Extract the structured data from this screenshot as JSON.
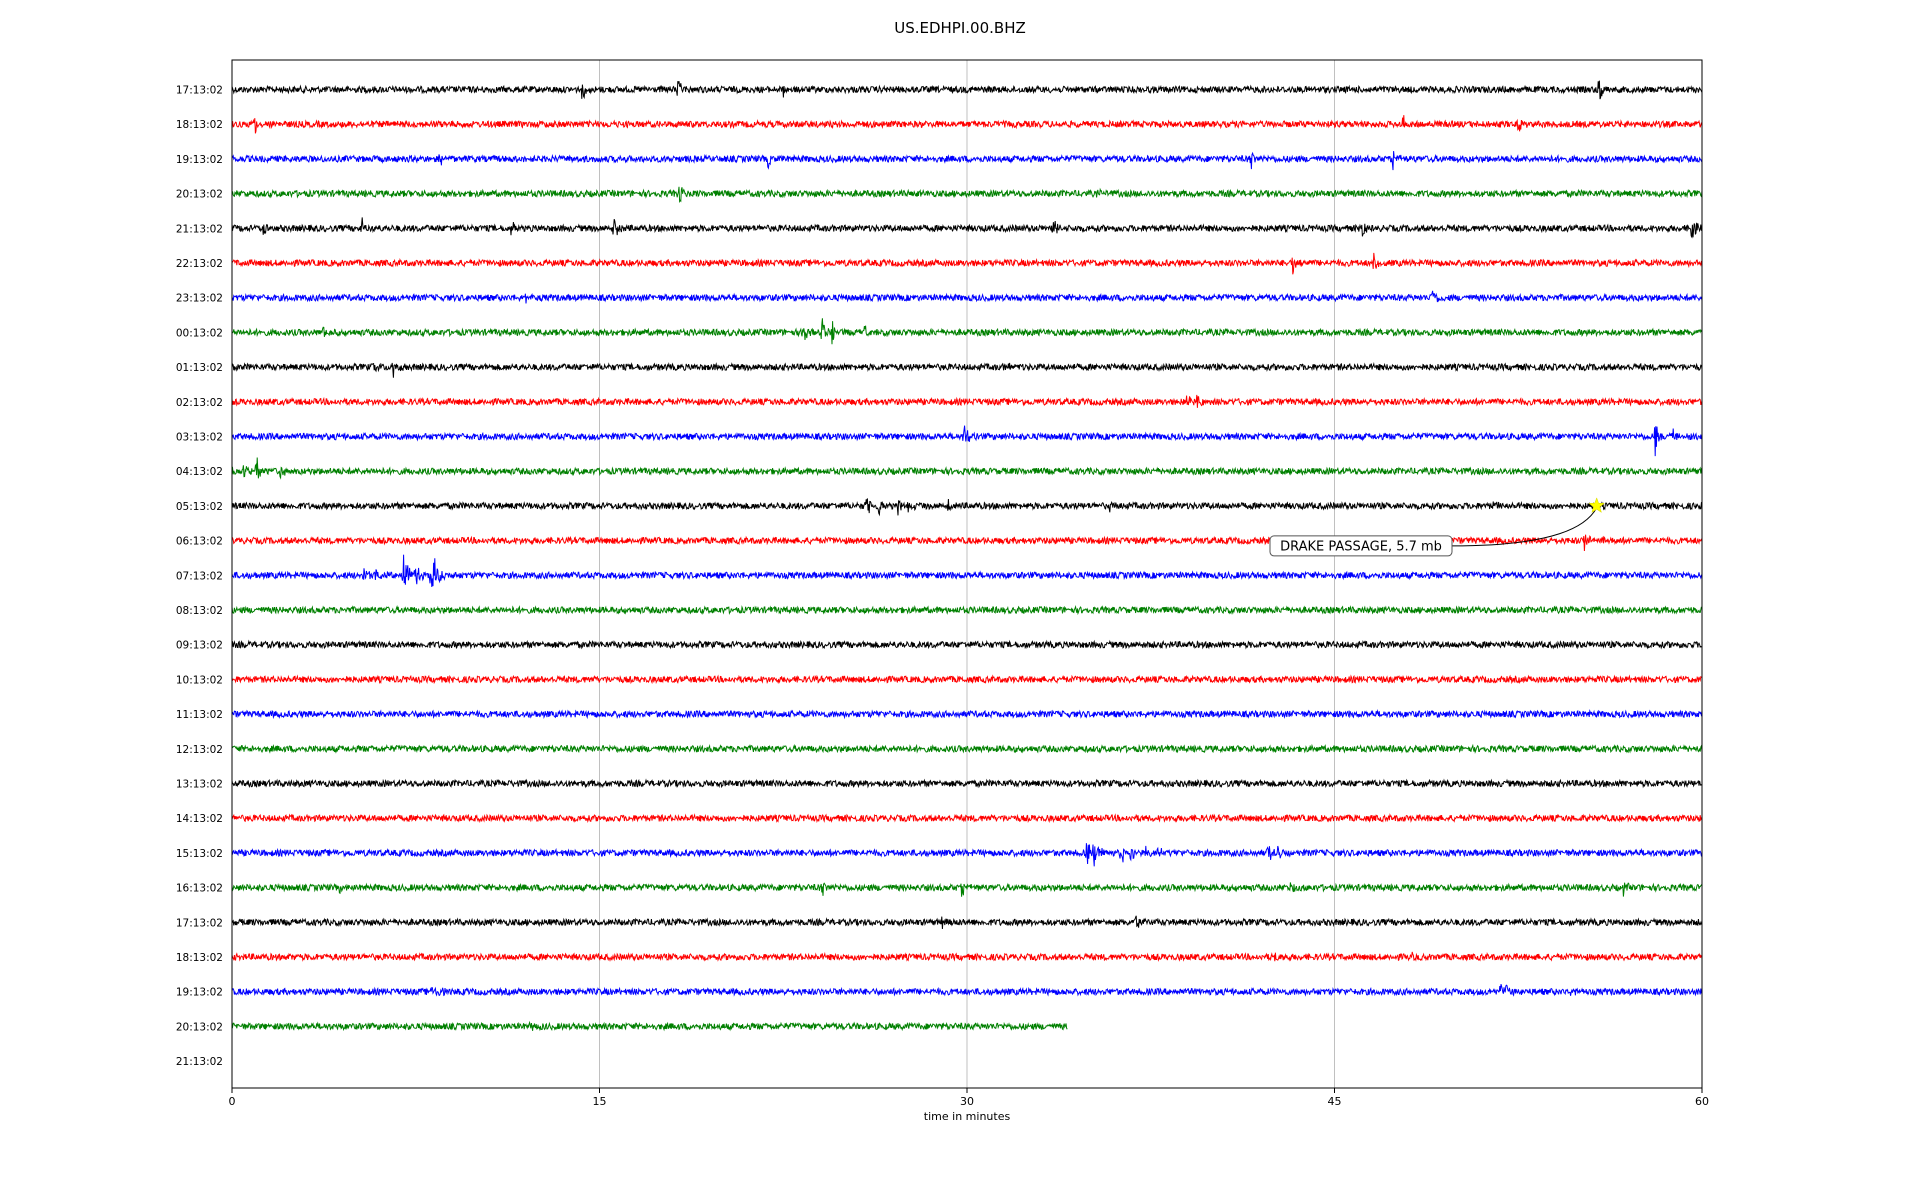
{
  "chart_data": {
    "type": "line",
    "title": "US.EDHPI.00.BHZ",
    "xlabel": "time in minutes",
    "ylabel": "",
    "xlim": [
      0,
      60
    ],
    "x_ticks": [
      0,
      15,
      30,
      45,
      60
    ],
    "grid": "vertical lines at x ticks",
    "row_labels": [
      "17:13:02",
      "18:13:02",
      "19:13:02",
      "20:13:02",
      "21:13:02",
      "22:13:02",
      "23:13:02",
      "00:13:02",
      "01:13:02",
      "02:13:02",
      "03:13:02",
      "04:13:02",
      "05:13:02",
      "06:13:02",
      "07:13:02",
      "08:13:02",
      "09:13:02",
      "10:13:02",
      "11:13:02",
      "12:13:02",
      "13:13:02",
      "14:13:02",
      "15:13:02",
      "16:13:02",
      "17:13:02",
      "18:13:02",
      "19:13:02",
      "20:13:02",
      "21:13:02"
    ],
    "row_colors": [
      "#000000",
      "#ff0000",
      "#0000ff",
      "#008000"
    ],
    "last_row_end_minute": 34.1,
    "events": [
      [
        {
          "t": 14.3,
          "a": 0.4
        },
        {
          "t": 18.2,
          "a": 0.35
        },
        {
          "t": 22.5,
          "a": 0.3
        },
        {
          "t": 55.8,
          "a": 0.7
        }
      ],
      [
        {
          "t": 0.9,
          "a": 0.8
        },
        {
          "t": 47.8,
          "a": 0.35
        },
        {
          "t": 52.5,
          "a": 0.3
        }
      ],
      [
        {
          "t": 8.5,
          "a": 0.25
        },
        {
          "t": 21.9,
          "a": 0.35
        },
        {
          "t": 41.6,
          "a": 0.35
        },
        {
          "t": 47.4,
          "a": 0.45
        }
      ],
      [
        {
          "t": 18.2,
          "a": 0.6
        },
        {
          "t": 27.6,
          "a": 0.3
        },
        {
          "t": 35.3,
          "a": 0.15
        }
      ],
      [
        {
          "t": 1.3,
          "a": 0.3
        },
        {
          "t": 5.3,
          "a": 0.4
        },
        {
          "t": 11.4,
          "a": 0.3
        },
        {
          "t": 15.6,
          "a": 0.5
        },
        {
          "t": 33.5,
          "a": 0.4
        },
        {
          "t": 46.1,
          "a": 0.4
        },
        {
          "t": 59.6,
          "a": 0.7
        }
      ],
      [
        {
          "t": 43.3,
          "a": 0.45
        },
        {
          "t": 46.6,
          "a": 0.35
        }
      ],
      [
        {
          "t": 12.0,
          "a": 0.15
        },
        {
          "t": 49.0,
          "a": 0.45
        }
      ],
      [
        {
          "t": 3.7,
          "a": 0.35
        },
        {
          "t": 23.3,
          "a": 0.6
        },
        {
          "t": 24.1,
          "a": 0.55
        },
        {
          "t": 24.5,
          "a": 0.55
        },
        {
          "t": 25.8,
          "a": 0.3
        }
      ],
      [
        {
          "t": 5.8,
          "a": 0.3
        },
        {
          "t": 6.6,
          "a": 0.6
        },
        {
          "t": 31.6,
          "a": 0.15
        }
      ],
      [
        {
          "t": 39.0,
          "a": 0.45
        },
        {
          "t": 39.4,
          "a": 0.2
        }
      ],
      [
        {
          "t": 29.9,
          "a": 0.8
        },
        {
          "t": 58.1,
          "a": 0.8
        },
        {
          "t": 58.8,
          "a": 0.3
        }
      ],
      [
        {
          "t": 0.5,
          "a": 0.35
        },
        {
          "t": 1.0,
          "a": 0.6
        },
        {
          "t": 2.0,
          "a": 0.35
        }
      ],
      [
        {
          "t": 25.9,
          "a": 0.4
        },
        {
          "t": 26.4,
          "a": 0.35
        },
        {
          "t": 27.2,
          "a": 0.3
        },
        {
          "t": 27.6,
          "a": 0.3
        },
        {
          "t": 29.2,
          "a": 0.4
        },
        {
          "t": 35.8,
          "a": 0.2
        },
        {
          "t": 51.5,
          "a": 0.2
        }
      ],
      [
        {
          "t": 55.2,
          "a": 0.45
        },
        {
          "t": 56.0,
          "a": 0.2
        }
      ],
      [
        {
          "t": 5.4,
          "a": 0.35
        },
        {
          "t": 5.9,
          "a": 0.3
        },
        {
          "t": 7.0,
          "a": 1.2
        },
        {
          "t": 7.5,
          "a": 0.55
        },
        {
          "t": 8.1,
          "a": 0.45
        },
        {
          "t": 8.2,
          "a": 0.9
        },
        {
          "t": 8.5,
          "a": 0.4
        }
      ],
      [],
      [],
      [],
      [],
      [],
      [],
      [],
      [
        {
          "t": 34.9,
          "a": 0.5
        },
        {
          "t": 35.2,
          "a": 0.8
        },
        {
          "t": 36.3,
          "a": 0.4
        },
        {
          "t": 36.7,
          "a": 0.4
        },
        {
          "t": 37.3,
          "a": 0.3
        },
        {
          "t": 37.8,
          "a": 0.25
        },
        {
          "t": 42.3,
          "a": 0.4
        },
        {
          "t": 42.7,
          "a": 0.3
        }
      ],
      [
        {
          "t": 4.4,
          "a": 0.2
        },
        {
          "t": 24.1,
          "a": 0.3
        },
        {
          "t": 29.8,
          "a": 0.35
        },
        {
          "t": 43.2,
          "a": 0.25
        },
        {
          "t": 56.8,
          "a": 0.35
        }
      ],
      [
        {
          "t": 29.0,
          "a": 0.2
        },
        {
          "t": 36.9,
          "a": 0.3
        }
      ],
      [
        {
          "t": 2.1,
          "a": 0.15
        },
        {
          "t": 42.5,
          "a": 0.35
        },
        {
          "t": 48.1,
          "a": 0.15
        }
      ],
      [
        {
          "t": 8.2,
          "a": 0.3
        },
        {
          "t": 8.5,
          "a": 0.2
        },
        {
          "t": 51.8,
          "a": 0.35
        },
        {
          "t": 52.0,
          "a": 0.3
        },
        {
          "t": 54.6,
          "a": 0.2
        }
      ],
      [
        {
          "t": 12.2,
          "a": 0.15
        }
      ],
      []
    ],
    "annotation": {
      "text": "DRAKE PASSAGE, 5.7 mb",
      "marker": "star",
      "marker_color": "#ffff00",
      "row": 12,
      "t": 55.7
    }
  }
}
